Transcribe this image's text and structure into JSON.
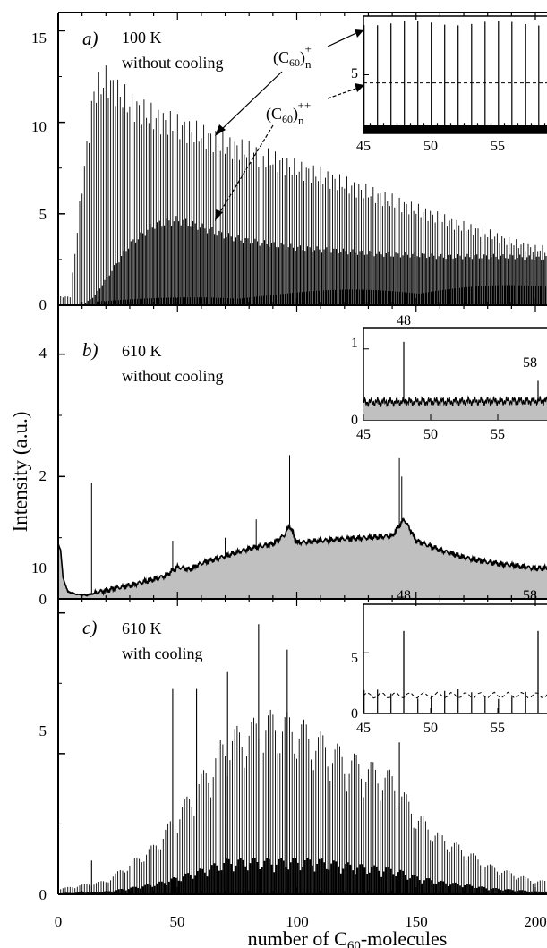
{
  "figure": {
    "ylabel": "Intensity  (a.u.)",
    "xlabel_main": "number of C",
    "xlabel_sub": "60",
    "xlabel_tail": "-molecules",
    "x_ticks": [
      "0",
      "50",
      "100",
      "150",
      "200"
    ]
  },
  "chart_data": [
    {
      "type": "bar",
      "panel": "a)",
      "annotation_line1": "100 K",
      "annotation_line2": "without cooling",
      "xlim": [
        0,
        200
      ],
      "ylim": [
        0,
        16
      ],
      "y_ticks": [
        "0",
        "5",
        "10",
        "15"
      ],
      "series": [
        {
          "name": "(C60)n+",
          "label_main": "(C",
          "label_sub": "60",
          "label_close": ")",
          "label_n": "n",
          "label_sup": "+",
          "x": [
            5,
            10,
            15,
            20,
            25,
            30,
            40,
            50,
            60,
            70,
            80,
            90,
            100,
            110,
            120,
            130,
            140,
            150,
            160,
            170,
            180,
            190,
            200
          ],
          "values": [
            0.5,
            7.0,
            12.5,
            13.2,
            12.5,
            11.8,
            11.0,
            10.5,
            10.0,
            9.4,
            9.0,
            8.5,
            8.0,
            7.6,
            7.1,
            6.6,
            6.1,
            5.6,
            5.1,
            4.6,
            4.2,
            3.7,
            3.3
          ]
        },
        {
          "name": "(C60)n++",
          "label_main": "(C",
          "label_sub": "60",
          "label_close": ")",
          "label_n": "n",
          "label_sup": "++",
          "x": [
            10,
            15,
            20,
            30,
            40,
            50,
            60,
            70,
            80,
            90,
            100,
            110,
            120,
            130,
            140,
            150,
            160,
            170,
            180,
            190,
            200
          ],
          "values": [
            0,
            0.5,
            1.5,
            3.5,
            4.6,
            4.9,
            4.5,
            4.0,
            3.7,
            3.5,
            3.3,
            3.2,
            3.1,
            3.0,
            2.9,
            2.9,
            2.8,
            2.8,
            2.8,
            2.8,
            2.7
          ]
        }
      ],
      "inset": {
        "xlim": [
          45,
          59
        ],
        "ylim": [
          0,
          10
        ],
        "x_ticks": [
          "45",
          "50",
          "55"
        ],
        "y_ticks": [
          "5"
        ],
        "peak_height": 9.4,
        "dashed_level": 4.3
      }
    },
    {
      "type": "area",
      "panel": "b)",
      "annotation_line1": "610 K",
      "annotation_line2": "without cooling",
      "xlim": [
        0,
        200
      ],
      "ylim": [
        0,
        4.8
      ],
      "y_ticks": [
        "0",
        "2",
        "4"
      ],
      "x": [
        0,
        1,
        2,
        4,
        8,
        12,
        16,
        20,
        30,
        40,
        45,
        50,
        55,
        60,
        70,
        80,
        90,
        95,
        97,
        100,
        110,
        120,
        130,
        140,
        143,
        145,
        148,
        150,
        160,
        170,
        180,
        190,
        200
      ],
      "values": [
        0.9,
        0.8,
        0.35,
        0.12,
        0.07,
        0.06,
        0.1,
        0.14,
        0.22,
        0.32,
        0.38,
        0.52,
        0.48,
        0.58,
        0.7,
        0.82,
        0.9,
        1.05,
        1.2,
        0.92,
        0.95,
        0.98,
        1.0,
        1.03,
        1.2,
        1.3,
        1.1,
        0.95,
        0.8,
        0.68,
        0.6,
        0.55,
        0.5
      ],
      "spikes": [
        {
          "x": 14,
          "value": 1.9
        },
        {
          "x": 48,
          "value": 0.95
        },
        {
          "x": 70,
          "value": 1.0
        },
        {
          "x": 83,
          "value": 1.3
        },
        {
          "x": 97,
          "value": 2.35
        },
        {
          "x": 143,
          "value": 2.3
        },
        {
          "x": 144,
          "value": 2.0
        }
      ],
      "inset": {
        "xlim": [
          45,
          59
        ],
        "ylim": [
          0,
          1.3
        ],
        "x_ticks": [
          "45",
          "50",
          "55"
        ],
        "y_ticks": [
          "0",
          "1"
        ],
        "peak_labels": [
          "48",
          "58"
        ],
        "peaks": [
          {
            "x": 48,
            "value": 1.1
          },
          {
            "x": 58,
            "value": 0.55
          }
        ],
        "baseline": 0.25
      }
    },
    {
      "type": "bar",
      "panel": "c)",
      "annotation_line1": "610 K",
      "annotation_line2": "with cooling",
      "xlim": [
        0,
        200
      ],
      "ylim": [
        0,
        10.5
      ],
      "y_ticks": [
        "0",
        "5",
        "10"
      ],
      "x": [
        0,
        20,
        40,
        50,
        60,
        70,
        80,
        90,
        100,
        110,
        120,
        130,
        140,
        150,
        160,
        170,
        180,
        190,
        200
      ],
      "values": [
        0.2,
        0.5,
        1.8,
        3.0,
        4.3,
        5.8,
        6.2,
        6.6,
        6.4,
        5.8,
        5.2,
        4.8,
        4.4,
        3.0,
        2.2,
        1.7,
        1.1,
        0.8,
        0.5
      ],
      "spikes": [
        {
          "x": 48,
          "value": 7.3
        },
        {
          "x": 58,
          "value": 7.3
        },
        {
          "x": 71,
          "value": 7.9
        },
        {
          "x": 84,
          "value": 9.6
        },
        {
          "x": 96,
          "value": 8.7
        },
        {
          "x": 143,
          "value": 5.4
        },
        {
          "x": 14,
          "value": 1.2
        }
      ],
      "inset": {
        "xlim": [
          45,
          59
        ],
        "ylim": [
          0,
          9
        ],
        "x_ticks": [
          "45",
          "50",
          "55"
        ],
        "y_ticks": [
          "0",
          "5"
        ],
        "peak_labels": [
          "48",
          "58"
        ],
        "peaks": [
          {
            "x": 48,
            "value": 6.8
          },
          {
            "x": 58,
            "value": 6.8
          }
        ],
        "regular_height": 2.0,
        "dashed_level": 1.5
      }
    }
  ]
}
